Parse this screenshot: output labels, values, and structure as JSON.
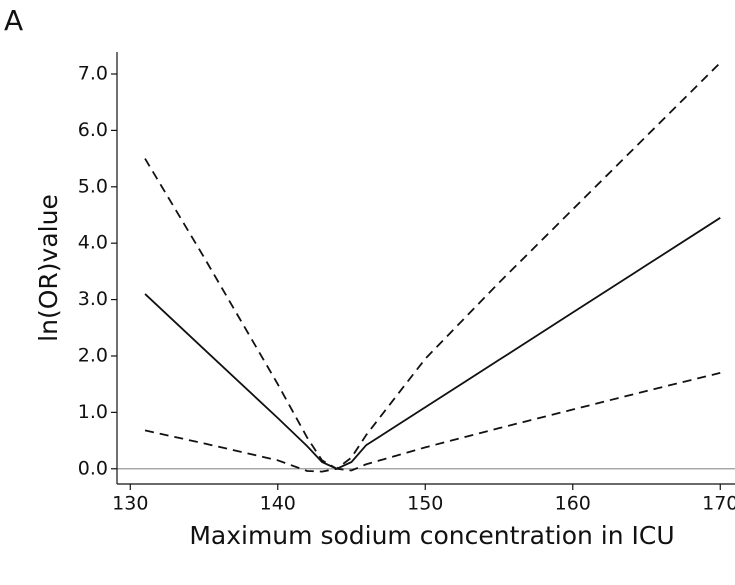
{
  "chart_data": {
    "type": "line",
    "panel_label": "A",
    "xlabel": "Maximum sodium concentration in ICU",
    "ylabel": "ln(OR)value",
    "xlim": [
      129.1,
      171
    ],
    "ylim": [
      -0.27,
      7.39
    ],
    "xticks": [
      130,
      140,
      150,
      160,
      170
    ],
    "yticks": [
      {
        "value": 0,
        "label": "0.0"
      },
      {
        "value": 1,
        "label": "1.0"
      },
      {
        "value": 2,
        "label": "2.0"
      },
      {
        "value": 3,
        "label": "3.0"
      },
      {
        "value": 4,
        "label": "4.0"
      },
      {
        "value": 5,
        "label": "5.0"
      },
      {
        "value": 6,
        "label": "6.0"
      },
      {
        "value": 7,
        "label": "7.0"
      }
    ],
    "reference_line": 0,
    "x": [
      131,
      135,
      140,
      142,
      143,
      144,
      145,
      146,
      150,
      155,
      160,
      165,
      170
    ],
    "series": [
      {
        "color": "#111111",
        "dash": "solid",
        "values": [
          3.1,
          2.12,
          0.9,
          0.4,
          0.12,
          0.0,
          0.12,
          0.42,
          1.09,
          1.93,
          2.77,
          3.61,
          4.45
        ]
      },
      {
        "color": "#111111",
        "dash": "dashed",
        "values": [
          5.5,
          3.75,
          1.5,
          0.55,
          0.15,
          0.0,
          0.2,
          0.6,
          1.95,
          3.3,
          4.6,
          5.9,
          7.2
        ]
      },
      {
        "color": "#111111",
        "dash": "dashed",
        "values": [
          0.68,
          0.45,
          0.15,
          -0.04,
          -0.05,
          0.0,
          -0.03,
          0.08,
          0.38,
          0.72,
          1.05,
          1.38,
          1.7
        ]
      }
    ]
  }
}
